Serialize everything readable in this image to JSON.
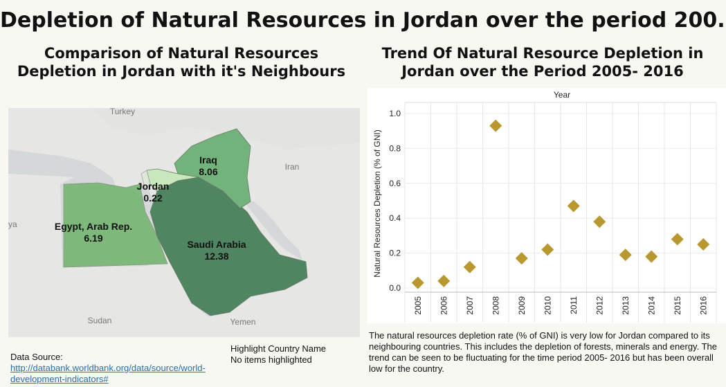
{
  "title": "Depletion of Natural Resources in Jordan over the period 200..",
  "map": {
    "title": "Comparison of Natural Resources Depletion in Jordan with it's Neighbours",
    "base_labels": [
      "Turkey",
      "Iran",
      "Sudan",
      "Yemen",
      "ya"
    ],
    "countries": [
      {
        "name": "Jordan",
        "value": "0.22",
        "color": "#c9e8bb"
      },
      {
        "name": "Iraq",
        "value": "8.06",
        "color": "#72b27b"
      },
      {
        "name": "Egypt, Arab Rep.",
        "value": "6.19",
        "color": "#7eb87b"
      },
      {
        "name": "Saudi Arabia",
        "value": "12.38",
        "color": "#4f8561"
      }
    ]
  },
  "chart_data": {
    "type": "scatter",
    "title": "Trend Of Natural Resource Depletion in Jordan over the Period 2005- 2016",
    "xlabel": "Year",
    "ylabel": "Natural Resources Depletion (% of GNI)",
    "categories": [
      "2005",
      "2006",
      "2007",
      "2008",
      "2009",
      "2010",
      "2011",
      "2012",
      "2013",
      "2014",
      "2015",
      "2016"
    ],
    "values": [
      0.03,
      0.04,
      0.12,
      0.93,
      0.17,
      0.22,
      0.47,
      0.38,
      0.19,
      0.18,
      0.28,
      0.25
    ],
    "ylim": [
      0,
      1.0
    ],
    "yticks": [
      "0.0",
      "0.2",
      "0.4",
      "0.6",
      "0.8",
      "1.0"
    ],
    "grid": true,
    "marker_color": "#b8982f"
  },
  "footer": {
    "data_source_label": "Data Source: ",
    "data_source_link": "http://databank.worldbank.org/data/source/world-development-indicators#",
    "highlight_title": "Highlight Country Name",
    "highlight_value": "No items highlighted",
    "description": "The natural resources depletion rate (% of GNI) is very low for Jordan compared to its neighbouring countries. This includes the depletion of forests, minerals and energy. The trend can be seen to be fluctuating for the time period 2005- 2016 but has been overall low for the country."
  }
}
